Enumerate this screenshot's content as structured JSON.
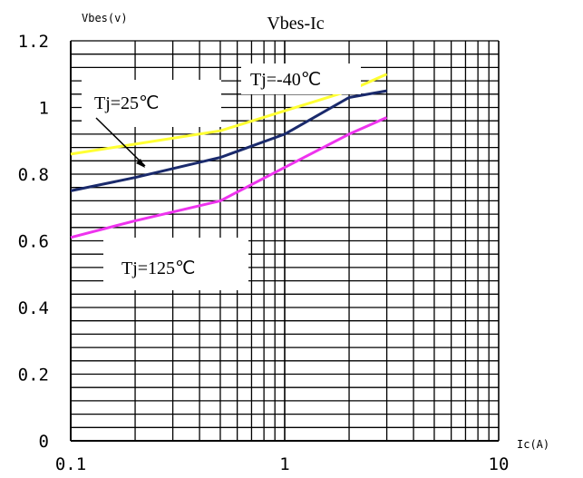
{
  "chart_data": {
    "type": "line",
    "title": "Vbes-Ic",
    "xlabel": "Ic(A)",
    "ylabel": "Vbes(v)",
    "x_scale": "log",
    "xlim": [
      0.1,
      10
    ],
    "ylim": [
      0,
      1.2
    ],
    "x_ticks": [
      "0.1",
      "1",
      "10"
    ],
    "y_ticks": [
      "0",
      "0.2",
      "0.4",
      "0.6",
      "0.8",
      "1",
      "1.2"
    ],
    "grid": true,
    "series": [
      {
        "name": "Tj=-40℃",
        "color": "#ffff33",
        "x": [
          0.1,
          0.2,
          0.5,
          1,
          2,
          3
        ],
        "y": [
          0.86,
          0.89,
          0.93,
          0.99,
          1.05,
          1.1
        ]
      },
      {
        "name": "Tj=25℃",
        "color": "#1a2a6c",
        "x": [
          0.1,
          0.2,
          0.5,
          1,
          2,
          3
        ],
        "y": [
          0.75,
          0.79,
          0.85,
          0.92,
          1.03,
          1.05
        ]
      },
      {
        "name": "Tj=125℃",
        "color": "#ee33ee",
        "x": [
          0.1,
          0.2,
          0.5,
          1,
          2,
          3
        ],
        "y": [
          0.61,
          0.66,
          0.72,
          0.82,
          0.92,
          0.97
        ]
      }
    ],
    "annotations": [
      {
        "text": "Tj=-40℃"
      },
      {
        "text": "Tj=25℃"
      },
      {
        "text": "Tj=125℃"
      }
    ]
  }
}
